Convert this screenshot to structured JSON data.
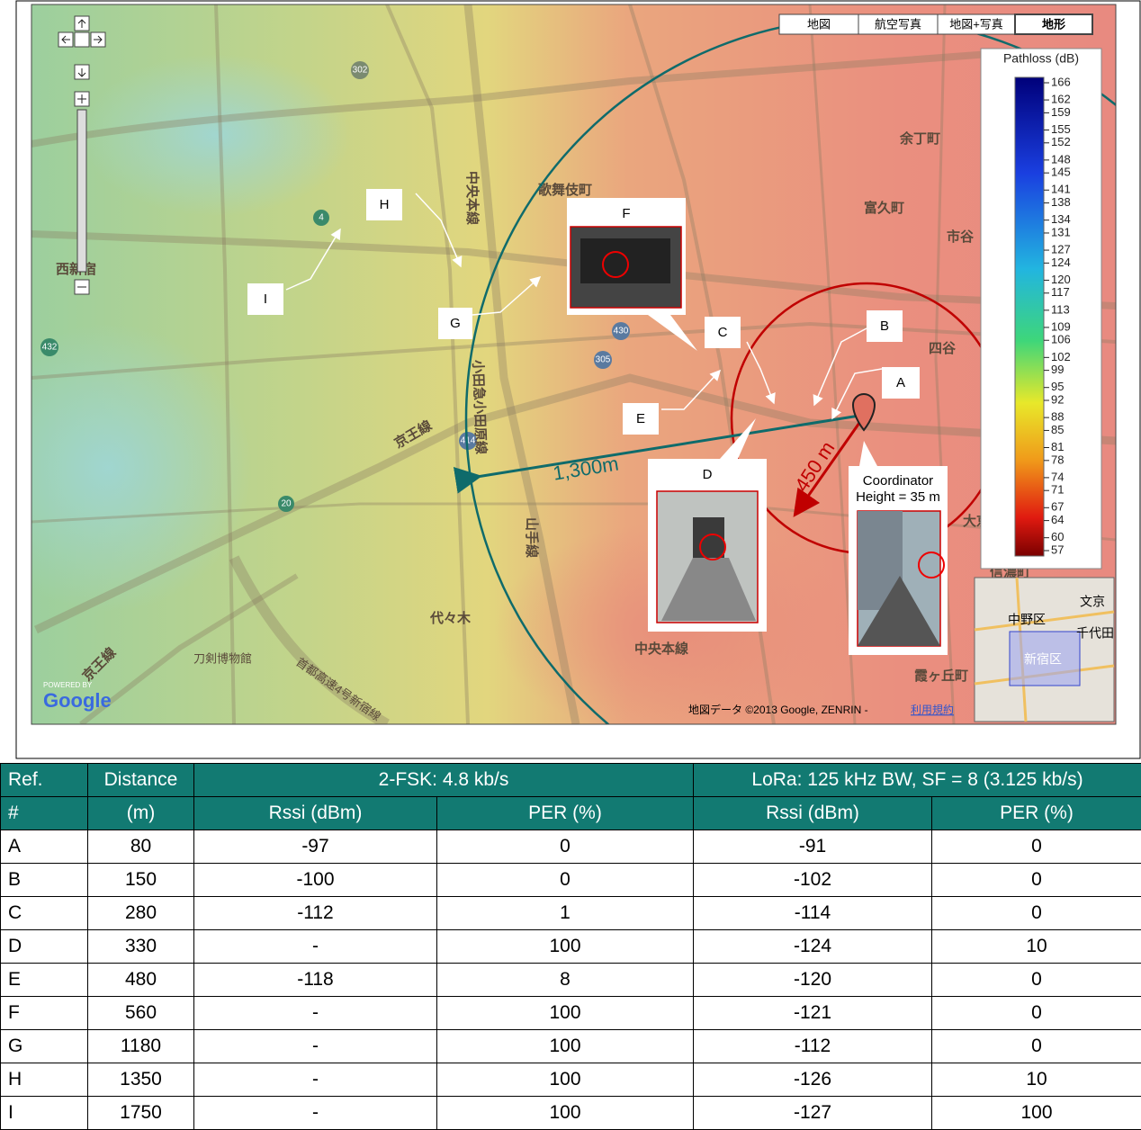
{
  "map": {
    "tabs": [
      "地図",
      "航空写真",
      "地図+写真",
      "地形"
    ],
    "legend": {
      "title": "Pathloss (dB)",
      "ticks": [
        166,
        162,
        159,
        155,
        152,
        148,
        145,
        141,
        138,
        134,
        131,
        127,
        124,
        120,
        117,
        113,
        109,
        106,
        102,
        99,
        95,
        92,
        88,
        85,
        81,
        78,
        74,
        71,
        67,
        64,
        60,
        57
      ]
    },
    "places": [
      "余丁町",
      "富久町",
      "市谷",
      "四谷",
      "歌舞伎町",
      "中央本線",
      "西新宿",
      "京王線",
      "小田急小田原線",
      "山手線",
      "代々木",
      "刀剣博物館",
      "首都高速4号新宿線",
      "中央本線",
      "霞ヶ丘町",
      "京王線",
      "信濃町",
      "大京"
    ],
    "road_numbers": [
      "302",
      "4",
      "432",
      "20",
      "430",
      "305",
      "414"
    ],
    "minimap": [
      "中野区",
      "文京",
      "千代田",
      "新宿区"
    ],
    "points": [
      "A",
      "B",
      "C",
      "D",
      "E",
      "F",
      "G",
      "H",
      "I"
    ],
    "range_labels": [
      "1,300m",
      "450 m"
    ],
    "coordinator": [
      "Coordinator",
      "Height = 35 m"
    ],
    "logo": [
      "POWERED BY",
      "Google"
    ],
    "copyright": "地図データ ©2013 Google, ZENRIN - ",
    "terms": "利用規約"
  },
  "table": {
    "header": [
      [
        "Ref.",
        "Distance",
        "2-FSK: 4.8 kb/s",
        "LoRa: 125 kHz BW, SF = 8 (3.125 kb/s)"
      ],
      [
        "#",
        "(m)",
        "Rssi (dBm)",
        "PER (%)",
        "Rssi (dBm)",
        "PER (%)"
      ]
    ],
    "rows": [
      [
        "A",
        80,
        -97,
        0,
        -91,
        0
      ],
      [
        "B",
        150,
        -100,
        0,
        -102,
        0
      ],
      [
        "C",
        280,
        -112,
        1,
        -114,
        0
      ],
      [
        "D",
        330,
        "-",
        100,
        -124,
        10
      ],
      [
        "E",
        480,
        -118,
        8,
        -120,
        0
      ],
      [
        "F",
        560,
        "-",
        100,
        -121,
        0
      ],
      [
        "G",
        1180,
        "-",
        100,
        -112,
        0
      ],
      [
        "H",
        1350,
        "-",
        100,
        -126,
        10
      ],
      [
        "I",
        1750,
        "-",
        100,
        -127,
        100
      ]
    ]
  }
}
